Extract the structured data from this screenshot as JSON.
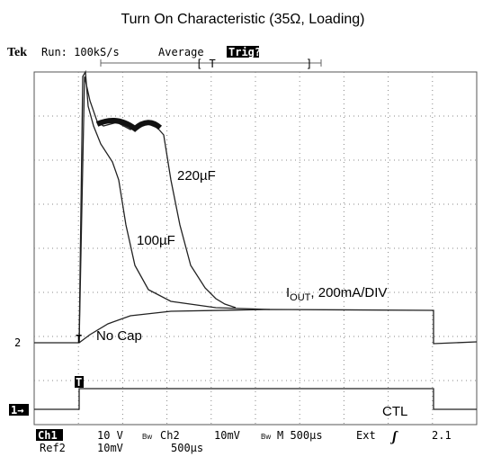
{
  "title": "Turn On Characteristic (35Ω, Loading)",
  "header": {
    "brand": "Tek",
    "run": "Run: 100kS/s",
    "mode": "Average",
    "trig": "Trig?"
  },
  "traces": {
    "c220": "220µF",
    "c100": "100µF",
    "nocap": "No Cap",
    "ctl": "CTL",
    "iout": {
      "main": "I",
      "sub": "OUT",
      "rest": ", 200mA/DIV"
    },
    "ch2_marker": "2",
    "ch1_marker": "1→",
    "trig_marker": "T"
  },
  "footer": {
    "ch1": "Ch1",
    "ch1_scale": "10 V",
    "bw1": "Bw",
    "ch2": "Ch2",
    "ch2_scale": "10mV",
    "bw2": "Bw",
    "time": "M 500µs",
    "source": "Ext",
    "level": "2.1",
    "ref": "Ref2",
    "ref_scale": "10mV",
    "ref_time": "500µs"
  }
}
